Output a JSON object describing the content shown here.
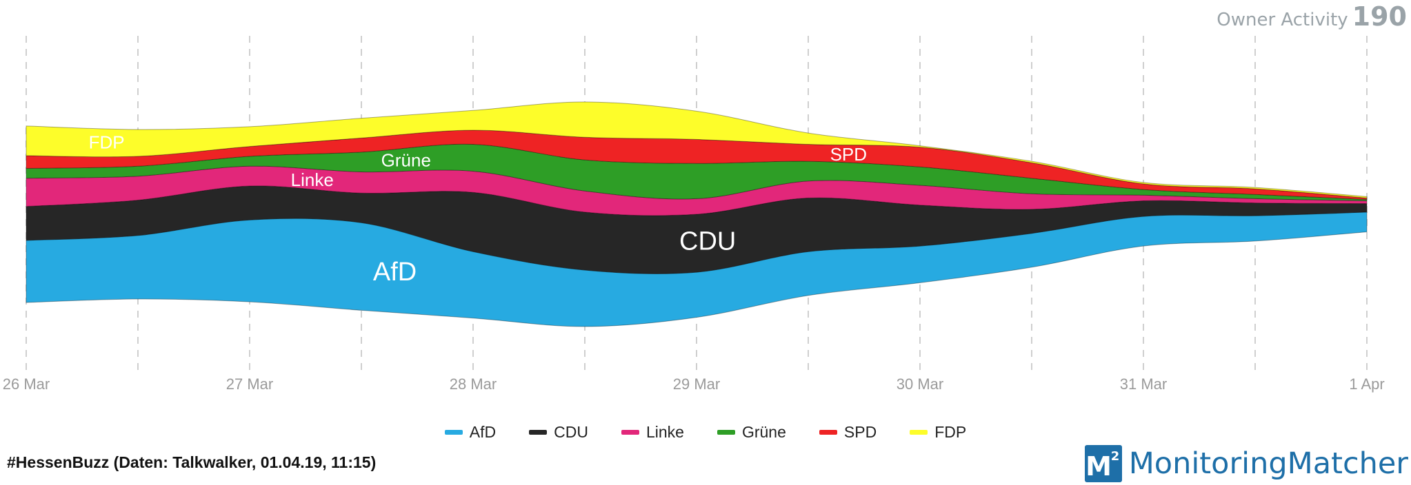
{
  "header": {
    "owner_activity_label": "Owner Activity",
    "owner_activity_count": "190"
  },
  "footer": {
    "source": "#HessenBuzz (Daten: Talkwalker, 01.04.19, 11:15)",
    "brand_name": "MonitoringMatcher",
    "logo_text": "M",
    "logo_superscript": "2"
  },
  "chart_data": {
    "type": "area",
    "stacked": true,
    "offset": "silhouette",
    "curve": "smooth",
    "x_tick_labels": [
      "26 Mar",
      "27 Mar",
      "28 Mar",
      "29 Mar",
      "30 Mar",
      "31 Mar",
      "1 Apr"
    ],
    "x": [
      0,
      0.5,
      1,
      1.5,
      2,
      2.5,
      3,
      3.5,
      4,
      4.5,
      5,
      5.5,
      6
    ],
    "grid": "vertical-dashed",
    "legend_position": "bottom",
    "series": [
      {
        "name": "AfD",
        "color": "#27aae1",
        "label_color": "#ffffff",
        "label_x": 1.65,
        "label_size": "large",
        "values": [
          44,
          45,
          58,
          62,
          47,
          40,
          32,
          31,
          26,
          24,
          21,
          18,
          14
        ]
      },
      {
        "name": "CDU",
        "color": "#262626",
        "label_color": "#ffffff",
        "label_x": 3.05,
        "label_size": "large",
        "values": [
          24,
          25,
          24,
          21,
          42,
          41,
          41,
          38,
          29,
          17,
          11,
          9,
          6
        ]
      },
      {
        "name": "Linke",
        "color": "#e2277a",
        "label_color": "#ffffff",
        "label_x": 1.28,
        "label_size": "small",
        "values": [
          20,
          17,
          14,
          15,
          15,
          15,
          11,
          12,
          14,
          11,
          4,
          3,
          2
        ]
      },
      {
        "name": "Grüne",
        "color": "#2e9e26",
        "label_color": "#ffffff",
        "label_x": 1.7,
        "label_size": "small",
        "values": [
          7,
          7,
          7,
          14,
          19,
          22,
          25,
          14,
          13,
          11,
          4,
          3,
          1
        ]
      },
      {
        "name": "SPD",
        "color": "#ee2324",
        "label_color": "#ffffff",
        "label_x": 3.68,
        "label_size": "small",
        "values": [
          9,
          7,
          7,
          10,
          10,
          16,
          17,
          12,
          14,
          11,
          4,
          4,
          1
        ]
      },
      {
        "name": "FDP",
        "color": "#fdfd2a",
        "label_color": "#ffffff",
        "label_x": 0.36,
        "label_size": "small",
        "values": [
          21,
          19,
          14,
          14,
          14,
          25,
          20,
          8,
          1,
          1,
          1,
          1,
          1
        ]
      }
    ]
  }
}
